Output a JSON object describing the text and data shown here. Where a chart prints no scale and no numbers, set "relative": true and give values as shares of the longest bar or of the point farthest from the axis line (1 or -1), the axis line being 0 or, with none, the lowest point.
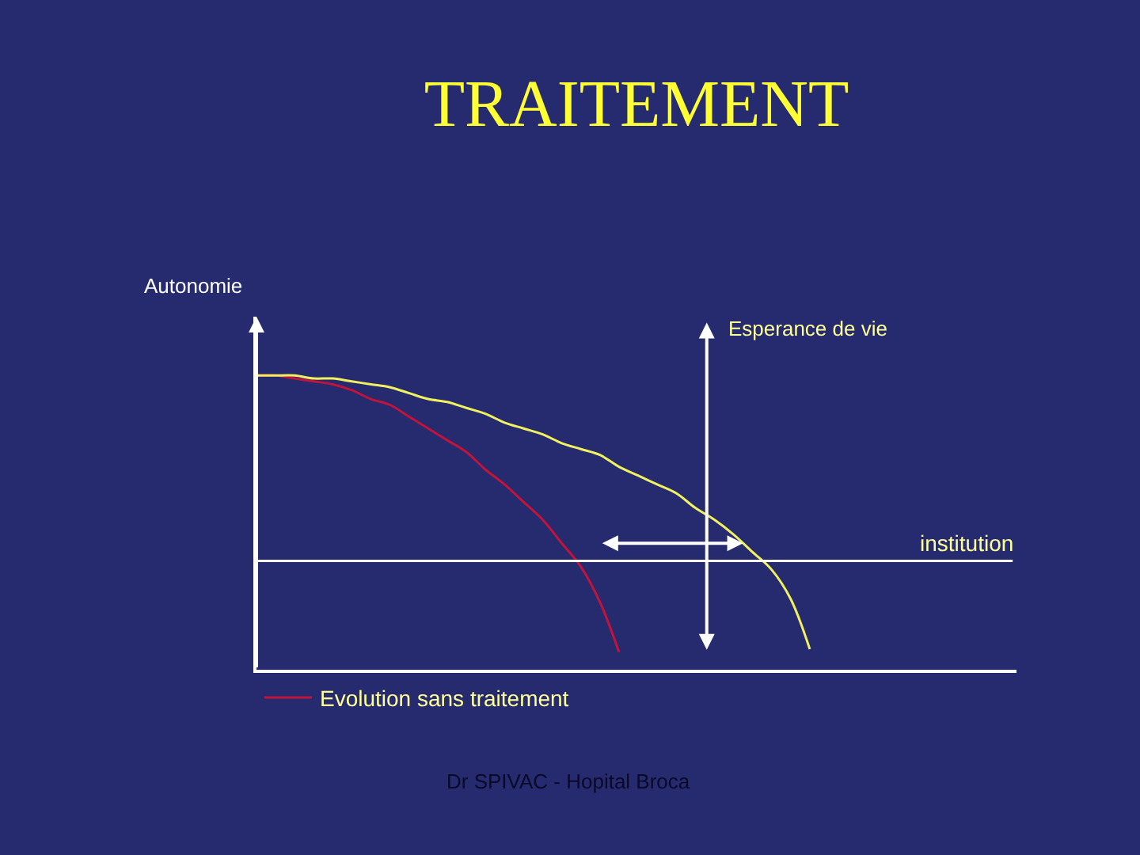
{
  "chart_data": {
    "type": "line",
    "title": "TRAITEMENT",
    "relative": true,
    "categories": [
      null,
      null,
      null,
      null,
      null,
      null,
      null,
      null,
      null,
      null,
      null,
      null,
      null,
      null,
      null,
      null,
      null,
      null,
      null,
      null,
      null,
      null,
      null,
      null,
      null,
      null,
      null,
      null,
      null,
      null
    ],
    "series": [
      {
        "name": "Evolution sans traitement",
        "color": "#c0143c",
        "values": [
          1,
          1,
          0.99,
          0.98,
          0.97,
          0.95,
          0.92,
          0.9,
          0.86,
          0.82,
          0.78,
          0.74,
          0.68,
          0.63,
          0.57,
          0.51,
          0.43,
          0.35,
          0.23,
          0.06,
          null,
          null,
          null,
          null,
          null,
          null,
          null,
          null,
          null,
          null
        ]
      },
      {
        "color": "#f0f060",
        "values": [
          1,
          1,
          1,
          0.99,
          0.99,
          0.98,
          0.97,
          0.96,
          0.94,
          0.92,
          0.91,
          0.89,
          0.87,
          0.84,
          0.82,
          0.8,
          0.77,
          0.75,
          0.73,
          0.69,
          0.66,
          0.63,
          0.6,
          0.55,
          0.51,
          0.46,
          0.4,
          0.34,
          0.24,
          0.07
        ]
      }
    ],
    "ref_lines": [
      {
        "axis": "y",
        "value": 0.37,
        "label": "institution",
        "color": "#ffffff"
      }
    ],
    "annotations": [
      "Autonomie",
      "Esperance de vie",
      "Dr SPIVAC - Hopital Broca"
    ],
    "legend": "bottom",
    "grid": false,
    "marker": "none",
    "line_style": "solid"
  }
}
